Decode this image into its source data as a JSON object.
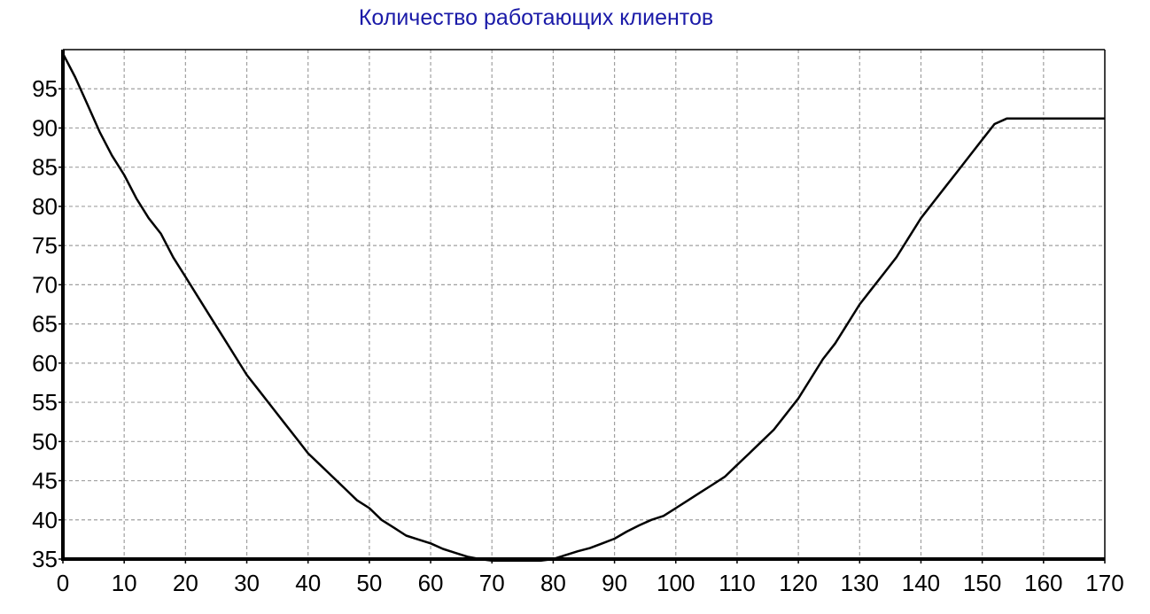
{
  "chart_data": {
    "type": "line",
    "title": "Количество работающих клиентов",
    "xlabel": "",
    "ylabel": "",
    "xlim": [
      0,
      170
    ],
    "ylim": [
      35,
      100
    ],
    "x_ticks": [
      "0",
      "10",
      "20",
      "30",
      "40",
      "50",
      "60",
      "70",
      "80",
      "90",
      "100",
      "110",
      "120",
      "130",
      "140",
      "150",
      "160",
      "170"
    ],
    "y_ticks": [
      "35",
      "40",
      "45",
      "50",
      "55",
      "60",
      "65",
      "70",
      "75",
      "80",
      "85",
      "90",
      "95"
    ],
    "grid": true,
    "legend": "none",
    "colors": {
      "title": "#1a1aa8",
      "line": "#000000",
      "grid": "#a0a0a0",
      "axis": "#000000"
    },
    "series": [
      {
        "x": [
          0,
          2,
          4,
          6,
          8,
          10,
          12,
          14,
          16,
          18,
          20,
          22,
          24,
          26,
          28,
          30,
          32,
          34,
          36,
          38,
          40,
          42,
          44,
          46,
          48,
          50,
          52,
          54,
          56,
          58,
          60,
          62,
          64,
          66,
          68,
          70,
          72,
          74,
          76,
          78,
          80,
          82,
          84,
          86,
          88,
          90,
          92,
          94,
          96,
          98,
          100,
          102,
          104,
          106,
          108,
          110,
          112,
          114,
          116,
          118,
          120,
          122,
          124,
          126,
          128,
          130,
          132,
          134,
          136,
          138,
          140,
          142,
          144,
          146,
          148,
          150,
          152,
          154,
          156,
          158,
          160,
          162,
          164,
          166,
          168,
          170
        ],
        "values": [
          99.5,
          96.5,
          93,
          89.5,
          86.5,
          84,
          81,
          78.5,
          76.5,
          73.5,
          71,
          68.5,
          66,
          63.5,
          61,
          58.5,
          56.5,
          54.5,
          52.5,
          50.5,
          48.5,
          47,
          45.5,
          44,
          42.5,
          41.5,
          40,
          39,
          38,
          37.5,
          37,
          36.3,
          35.8,
          35.3,
          35,
          34.8,
          34.8,
          34.8,
          34.8,
          34.8,
          35,
          35.5,
          36,
          36.4,
          37,
          37.6,
          38.5,
          39.3,
          40,
          40.5,
          41.5,
          42.5,
          43.5,
          44.5,
          45.5,
          47,
          48.5,
          50,
          51.5,
          53.5,
          55.5,
          58,
          60.5,
          62.5,
          65,
          67.5,
          69.5,
          71.5,
          73.5,
          76,
          78.5,
          80.5,
          82.5,
          84.5,
          86.5,
          88.5,
          90.5,
          91.2,
          91.2,
          91.2,
          91.2,
          91.2,
          91.2,
          91.2,
          91.2,
          91.2
        ]
      }
    ]
  }
}
